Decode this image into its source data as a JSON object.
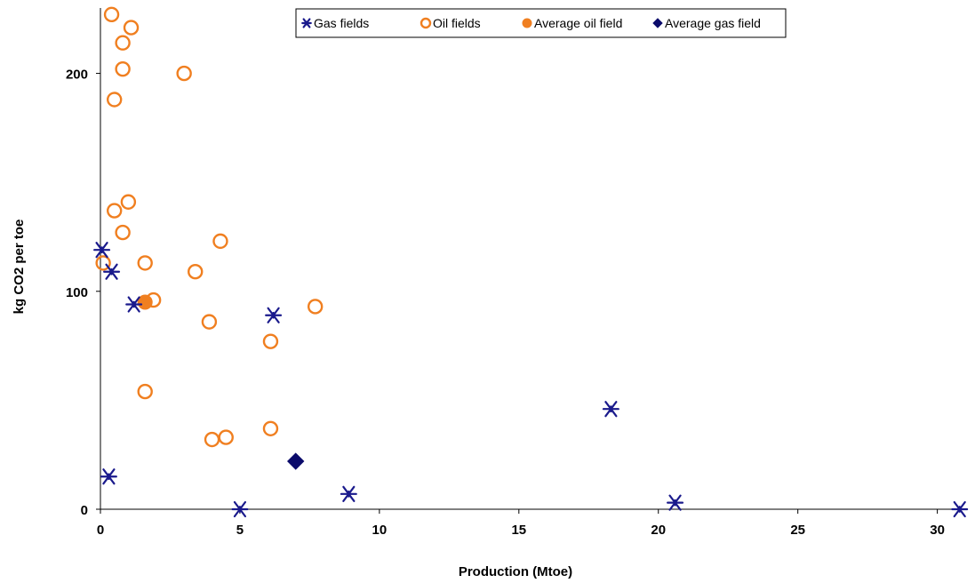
{
  "chart_data": {
    "type": "scatter",
    "xlabel": "Production (Mtoe)",
    "ylabel": "kg CO2 per toe",
    "xlim": [
      0,
      31
    ],
    "ylim": [
      0,
      230
    ],
    "xticks": [
      "0",
      "5",
      "10",
      "15",
      "20",
      "25",
      "30"
    ],
    "yticks": [
      "0",
      "100",
      "200"
    ],
    "grid": false,
    "legend_position": "top-center",
    "series": [
      {
        "name": "Gas fields",
        "marker": "asterisk",
        "color": "#1a1a8c",
        "points": [
          {
            "x": 0.05,
            "y": 119
          },
          {
            "x": 0.4,
            "y": 109
          },
          {
            "x": 1.2,
            "y": 94
          },
          {
            "x": 6.2,
            "y": 89
          },
          {
            "x": 0.3,
            "y": 15
          },
          {
            "x": 5.0,
            "y": 0
          },
          {
            "x": 8.9,
            "y": 7
          },
          {
            "x": 18.3,
            "y": 46
          },
          {
            "x": 20.6,
            "y": 3
          },
          {
            "x": 30.8,
            "y": 0
          }
        ]
      },
      {
        "name": "Oil fields",
        "marker": "open-circle",
        "color": "#f07f20",
        "points": [
          {
            "x": 0.4,
            "y": 227
          },
          {
            "x": 1.1,
            "y": 221
          },
          {
            "x": 0.8,
            "y": 214
          },
          {
            "x": 0.8,
            "y": 202
          },
          {
            "x": 3.0,
            "y": 200
          },
          {
            "x": 0.5,
            "y": 188
          },
          {
            "x": 1.0,
            "y": 141
          },
          {
            "x": 0.5,
            "y": 137
          },
          {
            "x": 0.8,
            "y": 127
          },
          {
            "x": 4.3,
            "y": 123
          },
          {
            "x": 0.1,
            "y": 113
          },
          {
            "x": 1.6,
            "y": 113
          },
          {
            "x": 3.4,
            "y": 109
          },
          {
            "x": 1.9,
            "y": 96
          },
          {
            "x": 7.7,
            "y": 93
          },
          {
            "x": 3.9,
            "y": 86
          },
          {
            "x": 6.1,
            "y": 77
          },
          {
            "x": 1.6,
            "y": 54
          },
          {
            "x": 6.1,
            "y": 37
          },
          {
            "x": 4.0,
            "y": 32
          },
          {
            "x": 4.5,
            "y": 33
          }
        ]
      },
      {
        "name": "Average oil field",
        "marker": "filled-circle",
        "color": "#f07f20",
        "points": [
          {
            "x": 1.6,
            "y": 95
          }
        ]
      },
      {
        "name": "Average gas field",
        "marker": "diamond",
        "color": "#0b0b6b",
        "points": [
          {
            "x": 7.0,
            "y": 22
          }
        ]
      }
    ]
  }
}
